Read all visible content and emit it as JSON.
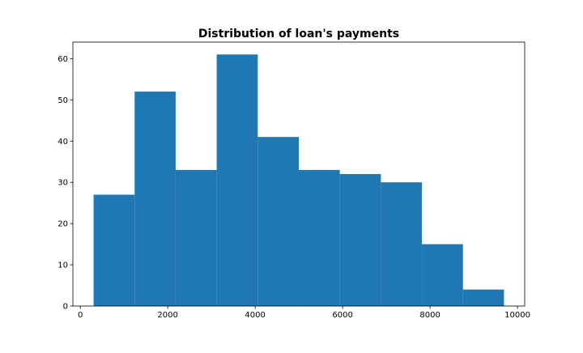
{
  "chart_data": {
    "type": "bar",
    "title": "Distribution of loan's payments",
    "xlabel": "",
    "ylabel": "",
    "bins": [
      {
        "x0": 304,
        "x1": 1243,
        "count": 27
      },
      {
        "x0": 1243,
        "x1": 2181,
        "count": 52
      },
      {
        "x0": 2181,
        "x1": 3120,
        "count": 33
      },
      {
        "x0": 3120,
        "x1": 4059,
        "count": 61
      },
      {
        "x0": 4059,
        "x1": 4998,
        "count": 41
      },
      {
        "x0": 4998,
        "x1": 5936,
        "count": 33
      },
      {
        "x0": 5936,
        "x1": 6875,
        "count": 32
      },
      {
        "x0": 6875,
        "x1": 7814,
        "count": 30
      },
      {
        "x0": 7814,
        "x1": 8752,
        "count": 15
      },
      {
        "x0": 8752,
        "x1": 9691,
        "count": 4
      }
    ],
    "xlim": [
      -170,
      10165
    ],
    "ylim": [
      0,
      64
    ],
    "xticks": [
      0,
      2000,
      4000,
      6000,
      8000,
      10000
    ],
    "yticks": [
      0,
      10,
      20,
      30,
      40,
      50,
      60
    ],
    "grid": false,
    "bar_color": "#1f77b4"
  }
}
